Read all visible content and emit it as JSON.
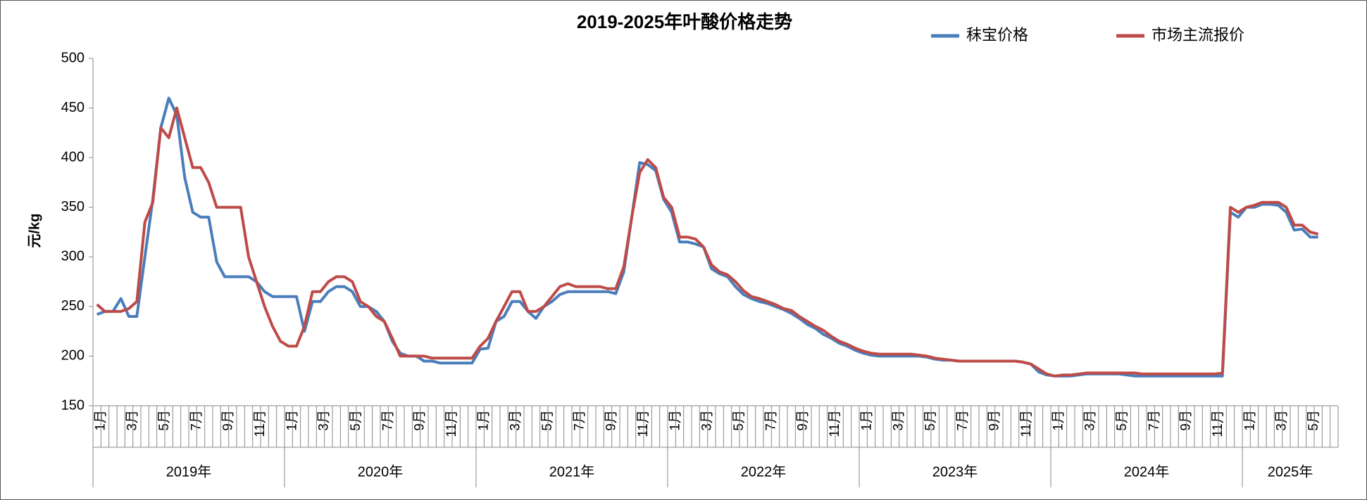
{
  "chart_data": {
    "type": "line",
    "title": "2019-2025年叶酸价格走势",
    "y_label": "元/kg",
    "ylim": [
      150,
      500
    ],
    "yticks": [
      150,
      200,
      250,
      300,
      350,
      400,
      450,
      500
    ],
    "legend": "top-right",
    "x_groups": [
      "2019年",
      "2020年",
      "2021年",
      "2022年",
      "2023年",
      "2024年",
      "2025年"
    ],
    "categories": [
      "1月",
      null,
      null,
      null,
      "3月",
      null,
      null,
      null,
      "5月",
      null,
      null,
      null,
      "7月",
      null,
      null,
      null,
      "9月",
      null,
      null,
      null,
      "11月",
      null,
      null,
      null,
      "1月",
      null,
      null,
      null,
      "3月",
      null,
      null,
      null,
      "5月",
      null,
      null,
      null,
      "7月",
      null,
      null,
      null,
      "9月",
      null,
      null,
      null,
      "11月",
      null,
      null,
      null,
      "1月",
      null,
      null,
      null,
      "3月",
      null,
      null,
      null,
      "5月",
      null,
      null,
      null,
      "7月",
      null,
      null,
      null,
      "9月",
      null,
      null,
      null,
      "11月",
      null,
      null,
      null,
      "1月",
      null,
      null,
      null,
      "3月",
      null,
      null,
      null,
      "5月",
      null,
      null,
      null,
      "7月",
      null,
      null,
      null,
      "9月",
      null,
      null,
      null,
      "11月",
      null,
      null,
      null,
      "1月",
      null,
      null,
      null,
      "3月",
      null,
      null,
      null,
      "5月",
      null,
      null,
      null,
      "7月",
      null,
      null,
      null,
      "9月",
      null,
      null,
      null,
      "11月",
      null,
      null,
      null,
      "1月",
      null,
      null,
      null,
      "3月",
      null,
      null,
      null,
      "5月",
      null,
      null,
      null,
      "7月",
      null,
      null,
      null,
      "9月",
      null,
      null,
      null,
      "11月",
      null,
      null,
      null,
      "1月",
      null,
      null,
      null,
      "3月",
      null,
      null,
      null,
      "5月",
      null,
      null,
      null
    ],
    "series": [
      {
        "name": "秣宝价格",
        "color": "#4a7ebb",
        "values": [
          242,
          245,
          245,
          258,
          240,
          240,
          300,
          358,
          430,
          460,
          443,
          380,
          345,
          340,
          340,
          295,
          280,
          280,
          280,
          280,
          275,
          265,
          260,
          260,
          260,
          260,
          225,
          255,
          255,
          265,
          270,
          270,
          265,
          250,
          250,
          245,
          235,
          215,
          203,
          200,
          200,
          195,
          195,
          193,
          193,
          193,
          193,
          193,
          207,
          208,
          235,
          240,
          255,
          255,
          245,
          238,
          250,
          255,
          262,
          265,
          265,
          265,
          265,
          265,
          265,
          263,
          285,
          340,
          395,
          393,
          387,
          358,
          345,
          315,
          315,
          313,
          310,
          288,
          283,
          280,
          270,
          262,
          258,
          255,
          253,
          250,
          247,
          243,
          238,
          232,
          228,
          222,
          218,
          213,
          210,
          206,
          203,
          201,
          200,
          200,
          200,
          200,
          200,
          200,
          199,
          197,
          196,
          196,
          195,
          195,
          195,
          195,
          195,
          195,
          195,
          195,
          194,
          192,
          184,
          181,
          180,
          180,
          180,
          181,
          182,
          182,
          182,
          182,
          182,
          181,
          180,
          180,
          180,
          180,
          180,
          180,
          180,
          180,
          180,
          180,
          180,
          180,
          345,
          340,
          350,
          350,
          353,
          353,
          352,
          345,
          327,
          328,
          320,
          320,
          null,
          null
        ]
      },
      {
        "name": "市场主流报价",
        "color": "#be4b48",
        "values": [
          252,
          245,
          245,
          245,
          248,
          255,
          335,
          355,
          430,
          420,
          450,
          420,
          390,
          390,
          375,
          350,
          350,
          350,
          350,
          300,
          275,
          250,
          230,
          215,
          210,
          210,
          230,
          265,
          265,
          275,
          280,
          280,
          275,
          255,
          250,
          240,
          235,
          218,
          200,
          200,
          200,
          200,
          198,
          198,
          198,
          198,
          198,
          198,
          210,
          218,
          235,
          250,
          265,
          265,
          245,
          245,
          250,
          260,
          270,
          273,
          270,
          270,
          270,
          270,
          268,
          268,
          290,
          340,
          385,
          398,
          390,
          360,
          350,
          320,
          320,
          318,
          310,
          292,
          285,
          282,
          275,
          266,
          260,
          258,
          255,
          252,
          248,
          246,
          240,
          235,
          230,
          226,
          220,
          215,
          212,
          208,
          205,
          203,
          202,
          202,
          202,
          202,
          202,
          201,
          200,
          198,
          197,
          196,
          195,
          195,
          195,
          195,
          195,
          195,
          195,
          195,
          194,
          192,
          187,
          182,
          180,
          181,
          181,
          182,
          183,
          183,
          183,
          183,
          183,
          183,
          183,
          182,
          182,
          182,
          182,
          182,
          182,
          182,
          182,
          182,
          182,
          183,
          350,
          345,
          350,
          352,
          355,
          355,
          355,
          350,
          332,
          332,
          325,
          323,
          null,
          null
        ]
      }
    ]
  }
}
